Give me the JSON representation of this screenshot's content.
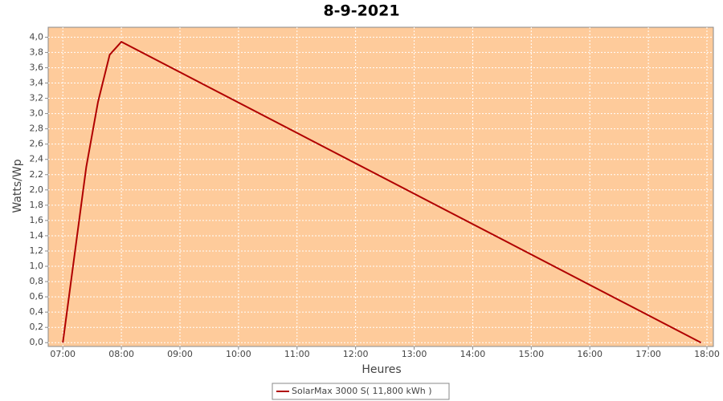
{
  "chart_data": {
    "type": "line",
    "title": "8-9-2021",
    "x_label": "Heures",
    "y_label": "Watts/Wp",
    "x": [
      7.0,
      7.4,
      7.6,
      7.8,
      8.0,
      17.9
    ],
    "series": [
      {
        "name": "SolarMax 3000 S( 11,800 kWh )",
        "color": "#b00000",
        "values": [
          0,
          2.3,
          3.15,
          3.77,
          3.94,
          0
        ]
      }
    ],
    "xlim": [
      6.75,
      18.11
    ],
    "ylim": [
      -0.05,
      4.13
    ],
    "xticks": [
      {
        "value": 7,
        "label": "07:00"
      },
      {
        "value": 8,
        "label": "08:00"
      },
      {
        "value": 9,
        "label": "09:00"
      },
      {
        "value": 10,
        "label": "10:00"
      },
      {
        "value": 11,
        "label": "11:00"
      },
      {
        "value": 12,
        "label": "12:00"
      },
      {
        "value": 13,
        "label": "13:00"
      },
      {
        "value": 14,
        "label": "14:00"
      },
      {
        "value": 15,
        "label": "15:00"
      },
      {
        "value": 16,
        "label": "16:00"
      },
      {
        "value": 17,
        "label": "17:00"
      },
      {
        "value": 18,
        "label": "18:00"
      }
    ],
    "yticks": [
      {
        "value": 0,
        "label": "0,0"
      },
      {
        "value": 0.2,
        "label": "0,2"
      },
      {
        "value": 0.4,
        "label": "0,4"
      },
      {
        "value": 0.6,
        "label": "0,6"
      },
      {
        "value": 0.8,
        "label": "0,8"
      },
      {
        "value": 1.0,
        "label": "1,0"
      },
      {
        "value": 1.2,
        "label": "1,2"
      },
      {
        "value": 1.4,
        "label": "1,4"
      },
      {
        "value": 1.6,
        "label": "1,6"
      },
      {
        "value": 1.8,
        "label": "1,8"
      },
      {
        "value": 2.0,
        "label": "2,0"
      },
      {
        "value": 2.2,
        "label": "2,2"
      },
      {
        "value": 2.4,
        "label": "2,4"
      },
      {
        "value": 2.6,
        "label": "2,6"
      },
      {
        "value": 2.8,
        "label": "2,8"
      },
      {
        "value": 3.0,
        "label": "3,0"
      },
      {
        "value": 3.2,
        "label": "3,2"
      },
      {
        "value": 3.4,
        "label": "3,4"
      },
      {
        "value": 3.6,
        "label": "3,6"
      },
      {
        "value": 3.8,
        "label": "3,8"
      },
      {
        "value": 4.0,
        "label": "4,0"
      }
    ],
    "grid": true,
    "background": "#fecb9b"
  }
}
